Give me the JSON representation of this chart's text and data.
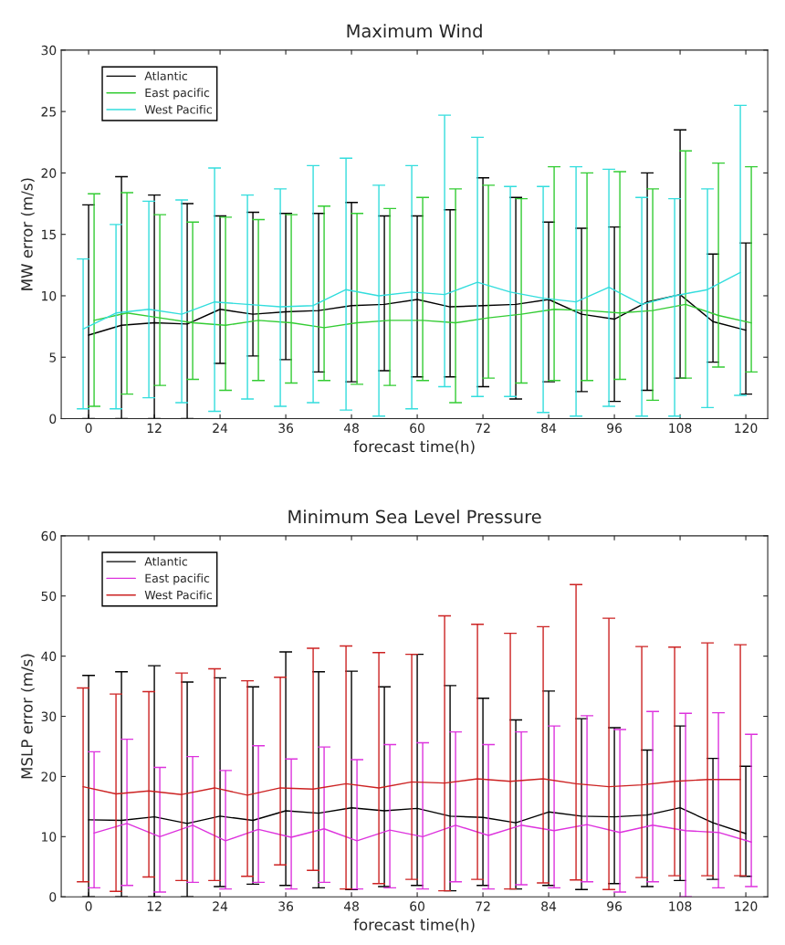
{
  "chart_data": [
    {
      "type": "line",
      "title": "Maximum Wind",
      "xlabel": "forecast time(h)",
      "ylabel": "MW error (m/s)",
      "xlim": [
        -5,
        124
      ],
      "xticks": [
        0,
        12,
        24,
        36,
        48,
        60,
        72,
        84,
        96,
        108,
        120
      ],
      "ylim": [
        0,
        30
      ],
      "yticks": [
        0,
        5,
        10,
        15,
        20,
        25,
        30
      ],
      "grid": false,
      "legend": "top left",
      "marker": "none",
      "line_style": "solid",
      "series": [
        {
          "name": "Atlantic",
          "color": "#000000",
          "x": [
            0,
            6,
            12,
            18,
            24,
            30,
            36,
            42,
            48,
            54,
            60,
            66,
            72,
            78,
            84,
            90,
            96,
            102,
            108,
            114,
            120
          ],
          "values": [
            6.8,
            7.6,
            7.8,
            7.7,
            8.9,
            8.5,
            8.7,
            8.8,
            9.2,
            9.3,
            9.7,
            9.1,
            9.2,
            9.3,
            9.7,
            8.5,
            8.1,
            9.5,
            10.1,
            7.9,
            7.2
          ],
          "errors": [
            [
              0,
              17.4
            ],
            [
              0,
              19.7
            ],
            [
              0,
              18.2
            ],
            [
              0,
              17.5
            ],
            [
              4.5,
              16.5
            ],
            [
              5.1,
              16.8
            ],
            [
              4.8,
              16.7
            ],
            [
              3.8,
              16.7
            ],
            [
              3.0,
              17.6
            ],
            [
              3.9,
              16.5
            ],
            [
              3.4,
              16.5
            ],
            [
              3.4,
              17.0
            ],
            [
              2.6,
              19.6
            ],
            [
              1.6,
              18.0
            ],
            [
              3.0,
              16.0
            ],
            [
              2.2,
              15.5
            ],
            [
              1.4,
              15.6
            ],
            [
              2.3,
              20.0
            ],
            [
              3.3,
              23.5
            ],
            [
              4.6,
              13.4
            ],
            [
              2.0,
              14.3
            ]
          ]
        },
        {
          "name": "East pacific",
          "color": "#33cc33",
          "x": [
            1,
            7,
            13,
            19,
            25,
            31,
            37,
            43,
            49,
            55,
            61,
            67,
            73,
            79,
            85,
            91,
            97,
            103,
            109,
            115,
            121
          ],
          "values": [
            8.0,
            8.6,
            8.2,
            7.8,
            7.6,
            8.0,
            7.8,
            7.4,
            7.8,
            8.0,
            8.0,
            7.8,
            8.2,
            8.5,
            8.9,
            8.8,
            8.6,
            8.8,
            9.3,
            8.4,
            7.8
          ],
          "errors": [
            [
              1.0,
              18.3
            ],
            [
              2.0,
              18.4
            ],
            [
              2.7,
              16.6
            ],
            [
              3.2,
              16.0
            ],
            [
              2.3,
              16.4
            ],
            [
              3.1,
              16.2
            ],
            [
              2.9,
              16.6
            ],
            [
              3.1,
              17.3
            ],
            [
              2.8,
              16.7
            ],
            [
              2.7,
              17.1
            ],
            [
              3.1,
              18.0
            ],
            [
              1.3,
              18.7
            ],
            [
              3.3,
              19.0
            ],
            [
              2.9,
              17.9
            ],
            [
              3.1,
              20.5
            ],
            [
              3.1,
              20.0
            ],
            [
              3.2,
              20.1
            ],
            [
              1.5,
              18.7
            ],
            [
              3.3,
              21.8
            ],
            [
              4.2,
              20.8
            ],
            [
              3.8,
              20.5
            ]
          ]
        },
        {
          "name": "West Pacific",
          "color": "#33dddd",
          "x": [
            -1,
            5,
            11,
            17,
            23,
            29,
            35,
            41,
            47,
            53,
            59,
            65,
            71,
            77,
            83,
            89,
            95,
            101,
            107,
            113,
            119
          ],
          "values": [
            7.3,
            8.6,
            8.9,
            8.5,
            9.5,
            9.3,
            9.1,
            9.2,
            10.5,
            10.0,
            10.3,
            10.1,
            11.1,
            10.3,
            9.8,
            9.5,
            10.7,
            9.3,
            10.0,
            10.5,
            11.9
          ],
          "errors": [
            [
              0.8,
              13.0
            ],
            [
              0.8,
              15.8
            ],
            [
              1.7,
              17.7
            ],
            [
              1.3,
              17.8
            ],
            [
              0.6,
              20.4
            ],
            [
              1.6,
              18.2
            ],
            [
              1.0,
              18.7
            ],
            [
              1.3,
              20.6
            ],
            [
              0.7,
              21.2
            ],
            [
              0.2,
              19.0
            ],
            [
              0.8,
              20.6
            ],
            [
              2.6,
              24.7
            ],
            [
              1.8,
              22.9
            ],
            [
              1.8,
              18.9
            ],
            [
              0.5,
              18.9
            ],
            [
              0.2,
              20.5
            ],
            [
              1.0,
              20.3
            ],
            [
              0.2,
              18.0
            ],
            [
              0.2,
              17.9
            ],
            [
              0.9,
              18.7
            ],
            [
              1.9,
              25.5
            ]
          ]
        }
      ]
    },
    {
      "type": "line",
      "title": "Minimum Sea Level Pressure",
      "xlabel": "forecast time(h)",
      "ylabel": "MSLP error (m/s)",
      "xlim": [
        -5,
        124
      ],
      "xticks": [
        0,
        12,
        24,
        36,
        48,
        60,
        72,
        84,
        96,
        108,
        120
      ],
      "ylim": [
        0,
        60
      ],
      "yticks": [
        0,
        10,
        20,
        30,
        40,
        50,
        60
      ],
      "grid": false,
      "legend": "top left",
      "marker": "none",
      "line_style": "solid",
      "series": [
        {
          "name": "Atlantic",
          "color": "#000000",
          "x": [
            0,
            6,
            12,
            18,
            24,
            30,
            36,
            42,
            48,
            54,
            60,
            66,
            72,
            78,
            84,
            90,
            96,
            102,
            108,
            114,
            120
          ],
          "values": [
            12.8,
            12.7,
            13.3,
            12.2,
            13.4,
            12.7,
            14.3,
            13.9,
            14.8,
            14.3,
            14.7,
            13.4,
            13.2,
            12.3,
            14.1,
            13.4,
            13.3,
            13.6,
            14.8,
            12.3,
            10.5
          ],
          "errors": [
            [
              0,
              36.8
            ],
            [
              0,
              37.4
            ],
            [
              0,
              38.4
            ],
            [
              0,
              35.7
            ],
            [
              1.7,
              36.4
            ],
            [
              2.1,
              34.9
            ],
            [
              1.9,
              40.7
            ],
            [
              1.5,
              37.4
            ],
            [
              1.2,
              37.5
            ],
            [
              1.7,
              34.9
            ],
            [
              1.9,
              40.3
            ],
            [
              1.0,
              35.1
            ],
            [
              1.9,
              33.0
            ],
            [
              1.3,
              29.4
            ],
            [
              1.9,
              34.2
            ],
            [
              1.2,
              29.6
            ],
            [
              2.2,
              28.1
            ],
            [
              1.7,
              24.4
            ],
            [
              2.7,
              28.4
            ],
            [
              2.9,
              23.0
            ],
            [
              3.4,
              21.7
            ]
          ]
        },
        {
          "name": "East pacific",
          "color": "#dd33dd",
          "x": [
            1,
            7,
            13,
            19,
            25,
            31,
            37,
            43,
            49,
            55,
            61,
            67,
            73,
            79,
            85,
            91,
            97,
            103,
            109,
            115,
            121
          ],
          "values": [
            10.6,
            12.2,
            10.0,
            11.9,
            9.3,
            11.2,
            9.9,
            11.3,
            9.3,
            11.1,
            10.0,
            11.9,
            10.2,
            11.9,
            11.0,
            12.0,
            10.7,
            11.9,
            11.0,
            10.7,
            9.1
          ],
          "errors": [
            [
              1.5,
              24.1
            ],
            [
              1.9,
              26.2
            ],
            [
              0.8,
              21.5
            ],
            [
              2.4,
              23.3
            ],
            [
              1.3,
              21.0
            ],
            [
              2.4,
              25.1
            ],
            [
              1.3,
              22.9
            ],
            [
              2.4,
              24.9
            ],
            [
              1.3,
              22.8
            ],
            [
              1.5,
              25.3
            ],
            [
              1.3,
              25.6
            ],
            [
              2.5,
              27.4
            ],
            [
              1.3,
              25.3
            ],
            [
              2.0,
              27.4
            ],
            [
              1.5,
              28.4
            ],
            [
              2.5,
              30.1
            ],
            [
              0.8,
              27.8
            ],
            [
              2.5,
              30.8
            ],
            [
              0,
              30.5
            ],
            [
              1.5,
              30.6
            ],
            [
              1.7,
              27.0
            ]
          ]
        },
        {
          "name": "West Pacific",
          "color": "#cc2222",
          "x": [
            -1,
            5,
            11,
            17,
            23,
            29,
            35,
            41,
            47,
            53,
            59,
            65,
            71,
            77,
            83,
            89,
            95,
            101,
            107,
            113,
            119
          ],
          "values": [
            18.3,
            17.1,
            17.6,
            17.0,
            18.1,
            16.9,
            18.1,
            17.9,
            18.8,
            18.1,
            19.1,
            18.9,
            19.6,
            19.2,
            19.6,
            18.8,
            18.3,
            18.6,
            19.2,
            19.5,
            19.5
          ],
          "errors": [
            [
              2.5,
              34.7
            ],
            [
              0.9,
              33.7
            ],
            [
              3.3,
              34.1
            ],
            [
              2.7,
              37.2
            ],
            [
              2.7,
              37.9
            ],
            [
              3.4,
              35.9
            ],
            [
              5.3,
              36.5
            ],
            [
              4.4,
              41.3
            ],
            [
              1.3,
              41.7
            ],
            [
              2.2,
              40.6
            ],
            [
              2.9,
              40.3
            ],
            [
              1.0,
              46.7
            ],
            [
              2.9,
              45.3
            ],
            [
              1.3,
              43.8
            ],
            [
              2.3,
              44.9
            ],
            [
              2.8,
              51.9
            ],
            [
              1.2,
              46.3
            ],
            [
              3.2,
              41.6
            ],
            [
              3.5,
              41.5
            ],
            [
              3.5,
              42.2
            ],
            [
              3.5,
              41.9
            ]
          ]
        }
      ]
    }
  ]
}
